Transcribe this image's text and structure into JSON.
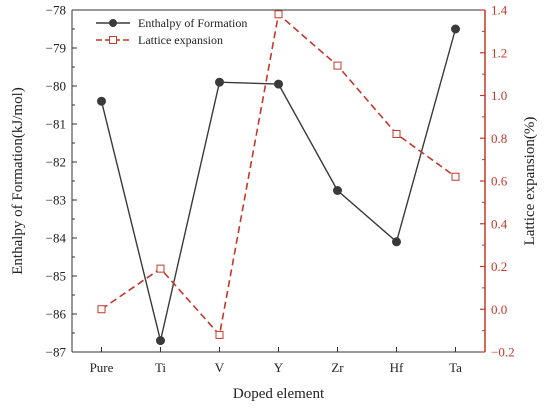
{
  "chart_data": {
    "type": "line",
    "categories": [
      "Pure",
      "Ti",
      "V",
      "Y",
      "Zr",
      "Hf",
      "Ta"
    ],
    "xlabel": "Doped element",
    "ylabel_left": "Enthalpy of Formation(kJ/mol)",
    "ylabel_right": "Lattice expansion(%)",
    "ylim_left": [
      -87,
      -78
    ],
    "ylim_right": [
      -0.2,
      1.4
    ],
    "yticks_left": [
      -78,
      -79,
      -80,
      -81,
      -82,
      -83,
      -84,
      -85,
      -86,
      -87
    ],
    "yticks_right": [
      -0.2,
      0.0,
      0.2,
      0.4,
      0.6,
      0.8,
      1.0,
      1.2,
      1.4
    ],
    "legend_position": "top-left",
    "series": [
      {
        "name": "Enthalpy of Formation",
        "axis": "left",
        "marker": "filled-circle",
        "line_style": "solid",
        "color": "#3a3a3a",
        "values": [
          -80.4,
          -86.7,
          -79.9,
          -79.95,
          -82.75,
          -84.1,
          -78.5
        ]
      },
      {
        "name": "Lattice expansion",
        "axis": "right",
        "marker": "open-square",
        "line_style": "dashed",
        "color": "#c0392b",
        "values": [
          0.0,
          0.19,
          -0.12,
          1.38,
          1.14,
          0.82,
          0.62
        ]
      }
    ]
  }
}
